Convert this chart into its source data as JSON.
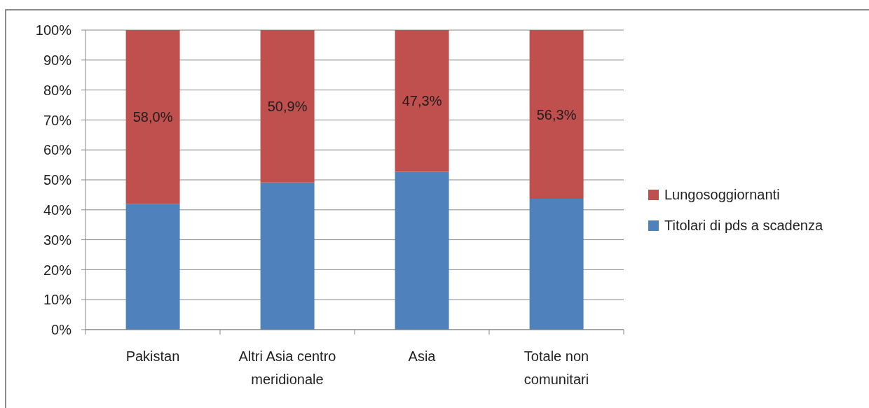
{
  "chart_data": {
    "type": "bar",
    "stacked": true,
    "categories": [
      "Pakistan",
      "Altri Asia centro meridionale",
      "Asia",
      "Totale non comunitari"
    ],
    "series": [
      {
        "name": "Titolari di pds a scadenza",
        "color": "#4f81bd",
        "values": [
          42.0,
          49.1,
          52.7,
          43.7
        ]
      },
      {
        "name": "Lungosoggiornanti",
        "color": "#c0504d",
        "values": [
          58.0,
          50.9,
          47.3,
          56.3
        ],
        "value_labels": [
          "58,0%",
          "50,9%",
          "47,3%",
          "56,3%"
        ]
      }
    ],
    "ylim": [
      0,
      100
    ],
    "yticks": [
      {
        "value": 0,
        "label": "0%"
      },
      {
        "value": 10,
        "label": "10%"
      },
      {
        "value": 20,
        "label": "20%"
      },
      {
        "value": 30,
        "label": "30%"
      },
      {
        "value": 40,
        "label": "40%"
      },
      {
        "value": 50,
        "label": "50%"
      },
      {
        "value": 60,
        "label": "60%"
      },
      {
        "value": 70,
        "label": "70%"
      },
      {
        "value": 80,
        "label": "80%"
      },
      {
        "value": 90,
        "label": "90%"
      },
      {
        "value": 100,
        "label": "100%"
      }
    ],
    "grid": "y",
    "legend": "right"
  }
}
